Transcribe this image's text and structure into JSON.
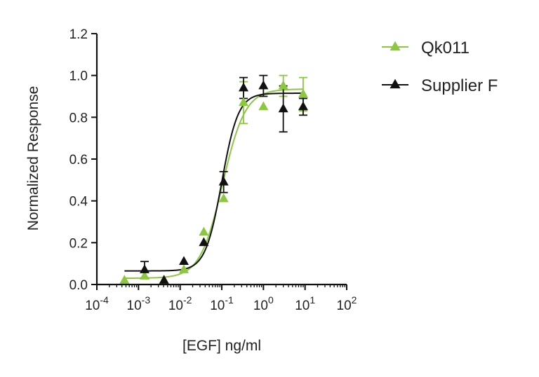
{
  "chart_data": {
    "type": "scatter",
    "xlabel": "[EGF] ng/ml",
    "ylabel": "Normalized Response",
    "xscale": "log",
    "xlim": [
      0.0001,
      100
    ],
    "ylim": [
      0,
      1.2
    ],
    "x_ticks": [
      {
        "value": 0.0001,
        "base": "10",
        "exp": "-4"
      },
      {
        "value": 0.001,
        "base": "10",
        "exp": "-3"
      },
      {
        "value": 0.01,
        "base": "10",
        "exp": "-2"
      },
      {
        "value": 0.1,
        "base": "10",
        "exp": "-1"
      },
      {
        "value": 1,
        "base": "10",
        "exp": "0"
      },
      {
        "value": 10,
        "base": "10",
        "exp": "1"
      },
      {
        "value": 100,
        "base": "10",
        "exp": "2"
      }
    ],
    "y_ticks": [
      "0.0",
      "0.2",
      "0.4",
      "0.6",
      "0.8",
      "1.0",
      "1.2"
    ],
    "grid": false,
    "legend_position": "top-right",
    "series": [
      {
        "name": "Qk011",
        "color": "#8dc63f",
        "marker": "triangle",
        "x": [
          0.00046,
          0.0014,
          0.0041,
          0.0123,
          0.037,
          0.111,
          0.333,
          1.0,
          3.0,
          9.0
        ],
        "y": [
          0.02,
          0.04,
          0.02,
          0.07,
          0.25,
          0.41,
          0.87,
          0.85,
          0.95,
          0.91
        ],
        "err": [
          0.0,
          0.0,
          0.0,
          0.0,
          0.0,
          0.0,
          0.1,
          0.0,
          0.05,
          0.08
        ],
        "fit": {
          "bottom": 0.03,
          "top": 0.935,
          "ec50": 0.105,
          "hill": 1.6
        }
      },
      {
        "name": "Supplier F",
        "color": "#111111",
        "marker": "triangle",
        "x": [
          0.0014,
          0.0041,
          0.0123,
          0.037,
          0.111,
          0.333,
          1.0,
          3.0,
          9.0
        ],
        "y": [
          0.07,
          0.02,
          0.11,
          0.2,
          0.49,
          0.94,
          0.95,
          0.84,
          0.85
        ],
        "err": [
          0.04,
          0.0,
          0.0,
          0.0,
          0.05,
          0.05,
          0.05,
          0.11,
          0.04
        ],
        "fit": {
          "bottom": 0.065,
          "top": 0.915,
          "ec50": 0.1,
          "hill": 2.2
        }
      }
    ]
  }
}
